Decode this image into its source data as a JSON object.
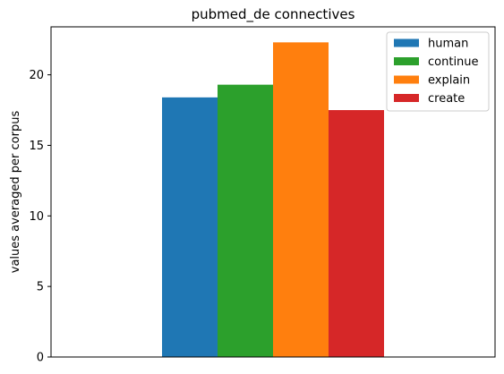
{
  "chart_data": {
    "type": "bar",
    "title": "pubmed_de connectives",
    "xlabel": "",
    "ylabel": "values averaged per corpus",
    "ylim": [
      0,
      23.4
    ],
    "yticks": [
      0,
      5,
      10,
      15,
      20
    ],
    "grid": false,
    "legend_position": "top-right",
    "series": [
      {
        "name": "human",
        "value": 18.4,
        "color": "#1f77b4"
      },
      {
        "name": "continue",
        "value": 19.3,
        "color": "#2ca02c"
      },
      {
        "name": "explain",
        "value": 22.3,
        "color": "#ff7f0e"
      },
      {
        "name": "create",
        "value": 17.5,
        "color": "#d62728"
      }
    ]
  }
}
